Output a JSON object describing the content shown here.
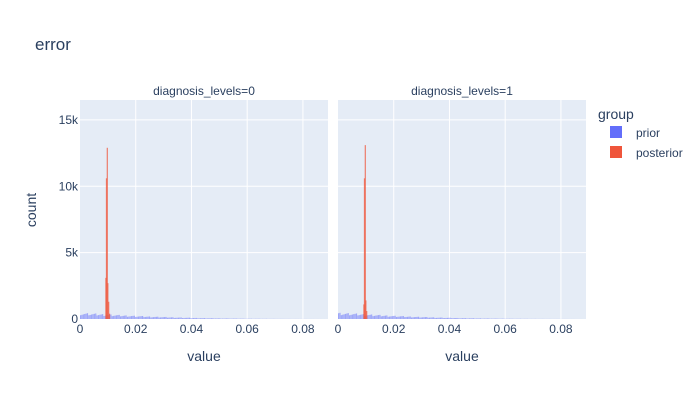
{
  "chart_data": {
    "type": "histogram",
    "title": "error",
    "xlabel": "value",
    "ylabel": "count",
    "xlim": [
      0,
      0.089
    ],
    "ylim": [
      0,
      16500
    ],
    "x_ticks": [
      {
        "v": 0,
        "label": "0"
      },
      {
        "v": 0.02,
        "label": "0.02"
      },
      {
        "v": 0.04,
        "label": "0.04"
      },
      {
        "v": 0.06,
        "label": "0.06"
      },
      {
        "v": 0.08,
        "label": "0.08"
      }
    ],
    "y_ticks": [
      {
        "v": 0,
        "label": "0"
      },
      {
        "v": 5000,
        "label": "5k"
      },
      {
        "v": 10000,
        "label": "10k"
      },
      {
        "v": 15000,
        "label": "15k"
      }
    ],
    "legend": {
      "title": "group",
      "position": "right"
    },
    "series": [
      {
        "name": "prior",
        "color": "#636efa"
      },
      {
        "name": "posterior",
        "color": "#ef553b"
      }
    ],
    "facets": [
      {
        "label": "diagnosis_levels=0",
        "prior_envelope": [
          [
            0,
            380
          ],
          [
            0.005,
            340
          ],
          [
            0.01,
            290
          ],
          [
            0.015,
            240
          ],
          [
            0.02,
            200
          ],
          [
            0.025,
            160
          ],
          [
            0.03,
            130
          ],
          [
            0.035,
            100
          ],
          [
            0.04,
            75
          ],
          [
            0.045,
            55
          ],
          [
            0.05,
            40
          ],
          [
            0.055,
            30
          ],
          [
            0.06,
            20
          ],
          [
            0.065,
            14
          ],
          [
            0.07,
            9
          ],
          [
            0.075,
            6
          ],
          [
            0.08,
            4
          ],
          [
            0.085,
            2
          ],
          [
            0.089,
            0
          ]
        ],
        "posterior_bins": [
          {
            "x": 0.0093,
            "count": 3100
          },
          {
            "x": 0.0095,
            "count": 10600
          },
          {
            "x": 0.0098,
            "count": 12900
          },
          {
            "x": 0.01,
            "count": 2700
          },
          {
            "x": 0.0103,
            "count": 1300
          },
          {
            "x": 0.0106,
            "count": 400
          }
        ]
      },
      {
        "label": "diagnosis_levels=1",
        "prior_envelope": [
          [
            0,
            400
          ],
          [
            0.005,
            350
          ],
          [
            0.01,
            300
          ],
          [
            0.015,
            250
          ],
          [
            0.02,
            205
          ],
          [
            0.025,
            165
          ],
          [
            0.03,
            132
          ],
          [
            0.035,
            102
          ],
          [
            0.04,
            76
          ],
          [
            0.045,
            56
          ],
          [
            0.05,
            41
          ],
          [
            0.055,
            30
          ],
          [
            0.06,
            20
          ],
          [
            0.065,
            14
          ],
          [
            0.07,
            9
          ],
          [
            0.075,
            6
          ],
          [
            0.08,
            4
          ],
          [
            0.085,
            2
          ],
          [
            0.089,
            0
          ]
        ],
        "posterior_bins": [
          {
            "x": 0.0093,
            "count": 1100
          },
          {
            "x": 0.0095,
            "count": 10600
          },
          {
            "x": 0.0098,
            "count": 13100
          },
          {
            "x": 0.01,
            "count": 1400
          },
          {
            "x": 0.0103,
            "count": 600
          }
        ]
      }
    ]
  }
}
